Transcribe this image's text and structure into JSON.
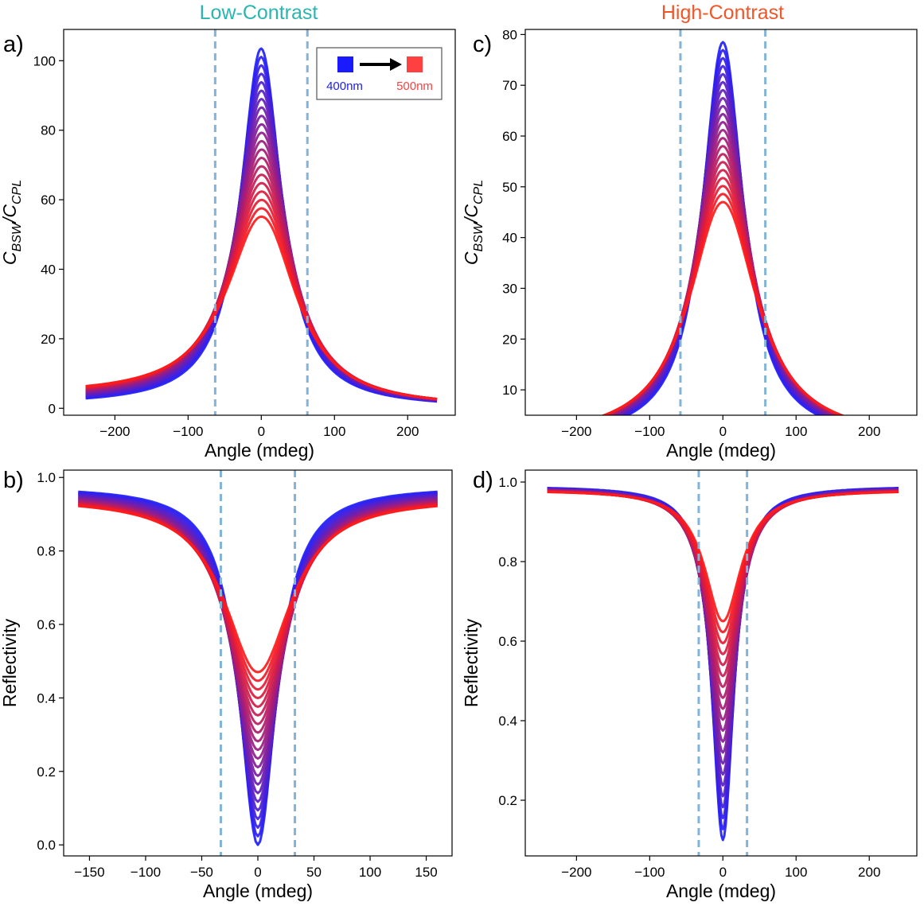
{
  "figure": {
    "column_titles": [
      {
        "text": "Low-Contrast",
        "color": "#2bb5b0"
      },
      {
        "text": "High-Contrast",
        "color": "#f0562a"
      }
    ],
    "panel_letters": [
      "a)",
      "b)",
      "c)",
      "d)"
    ]
  },
  "legend": {
    "start_label": "400nm",
    "end_label": "500nm",
    "start_color": "#1a1aff",
    "end_color": "#ff4040",
    "arrow_color": "#000000"
  },
  "styles": {
    "guide_line_color": "#82b4d9",
    "spectrum_start_color": "#2020ff",
    "spectrum_end_color": "#ff1a1a"
  },
  "chart_data": [
    {
      "id": "a",
      "type": "line",
      "title": "",
      "xlabel": "Angle (mdeg)",
      "ylabel_main": "C",
      "ylabel_sub1": "BSW",
      "ylabel_sep": "/C",
      "ylabel_sub2": "CPL",
      "xlim": [
        -270,
        265
      ],
      "ylim": [
        -2,
        109
      ],
      "xticks": [
        -200,
        -100,
        0,
        100,
        200
      ],
      "xtick_labels": [
        "−200",
        "−100",
        "0",
        "100",
        "200"
      ],
      "yticks": [
        0,
        20,
        40,
        60,
        80,
        100
      ],
      "ytick_labels": [
        "0",
        "20",
        "40",
        "60",
        "80",
        "100"
      ],
      "vlines": [
        -63,
        63
      ],
      "series_count": 21,
      "model": "lorentzian",
      "x_range": [
        -240,
        240
      ],
      "peak_range": [
        103.5,
        55
      ],
      "width_range": [
        34,
        58
      ],
      "center_range": [
        0,
        3
      ],
      "asym_range": [
        0.04,
        0.16
      ],
      "legend": true
    },
    {
      "id": "b",
      "type": "line",
      "title": "",
      "xlabel": "Angle (mdeg)",
      "ylabel": "Reflectivity",
      "xlim": [
        -173,
        173
      ],
      "ylim": [
        -0.03,
        1.02
      ],
      "xticks": [
        -150,
        -100,
        -50,
        0,
        50,
        100,
        150
      ],
      "xtick_labels": [
        "−150",
        "−100",
        "−50",
        "0",
        "50",
        "100",
        "150"
      ],
      "yticks": [
        0.0,
        0.2,
        0.4,
        0.6,
        0.8,
        1.0
      ],
      "ytick_labels": [
        "0.0",
        "0.2",
        "0.4",
        "0.6",
        "0.8",
        "1.0"
      ],
      "vlines": [
        -33,
        33
      ],
      "series_count": 21,
      "model": "dip",
      "x_range": [
        -160,
        160
      ],
      "min_range": [
        0.0,
        0.47
      ],
      "width_range": [
        20,
        36
      ],
      "far_range": [
        0.976,
        0.945
      ],
      "legend": false
    },
    {
      "id": "c",
      "type": "line",
      "title": "",
      "xlabel": "Angle (mdeg)",
      "ylabel_main": "C",
      "ylabel_sub1": "BSW",
      "ylabel_sep": "/C",
      "ylabel_sub2": "CPL",
      "xlim": [
        -270,
        265
      ],
      "ylim": [
        5,
        81
      ],
      "xticks": [
        -200,
        -100,
        0,
        100,
        200
      ],
      "xtick_labels": [
        "−200",
        "−100",
        "0",
        "100",
        "200"
      ],
      "yticks": [
        10,
        20,
        30,
        40,
        50,
        60,
        70,
        80
      ],
      "ytick_labels": [
        "10",
        "20",
        "30",
        "40",
        "50",
        "60",
        "70",
        "80"
      ],
      "vlines": [
        -58,
        58
      ],
      "series_count": 21,
      "model": "lorentzian",
      "x_range": [
        -240,
        240
      ],
      "peak_range": [
        78.5,
        47
      ],
      "width_range": [
        34,
        56
      ],
      "center_range": [
        0,
        0
      ],
      "asym_range": [
        0,
        0
      ],
      "legend": false
    },
    {
      "id": "d",
      "type": "line",
      "title": "",
      "xlabel": "Angle (mdeg)",
      "ylabel": "Reflectivity",
      "xlim": [
        -270,
        265
      ],
      "ylim": [
        0.06,
        1.03
      ],
      "xticks": [
        -200,
        -100,
        0,
        100,
        200
      ],
      "xtick_labels": [
        "−200",
        "−100",
        "0",
        "100",
        "200"
      ],
      "yticks": [
        0.2,
        0.4,
        0.6,
        0.8,
        1.0
      ],
      "ytick_labels": [
        "0.2",
        "0.4",
        "0.6",
        "0.8",
        "1.0"
      ],
      "vlines": [
        -33,
        33
      ],
      "series_count": 21,
      "model": "dip",
      "x_range": [
        -240,
        240
      ],
      "min_range": [
        0.1,
        0.65
      ],
      "width_range": [
        18,
        30
      ],
      "far_range": [
        0.99,
        0.98
      ],
      "legend": false
    }
  ]
}
